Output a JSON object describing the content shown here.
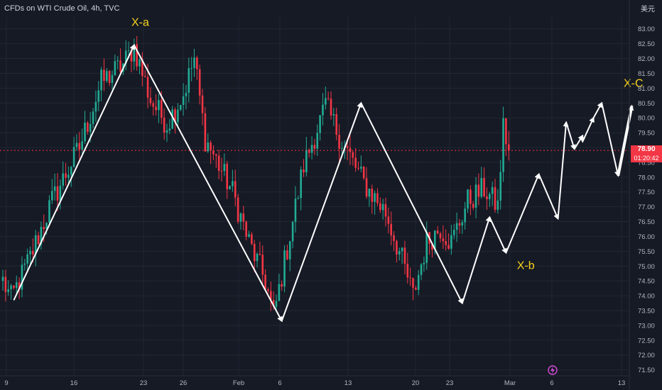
{
  "header": {
    "title": "CFDs on WTI Crude Oil, 4h, TVC",
    "currency": "美元"
  },
  "price_badge": {
    "price": "78.90",
    "countdown": "01:20:42"
  },
  "colors": {
    "background": "#161a25",
    "grid": "#232733",
    "up": "#22ab94",
    "down": "#f23645",
    "axis_text": "#b2b5be",
    "annotation": "#f7d21e",
    "wave": "#ffffff"
  },
  "chart_data": {
    "type": "candlestick",
    "title": "CFDs on WTI Crude Oil, 4h, TVC",
    "x_ticks": [
      "9",
      "16",
      "23",
      "26",
      "Feb",
      "6",
      "13",
      "20",
      "23",
      "Mar",
      "6",
      "13"
    ],
    "y_ticks": [
      "71.50",
      "72.00",
      "72.50",
      "73.00",
      "73.50",
      "74.00",
      "74.50",
      "75.00",
      "75.50",
      "76.00",
      "76.50",
      "77.00",
      "77.50",
      "78.00",
      "78.50",
      "79.00",
      "79.50",
      "80.00",
      "80.50",
      "81.00",
      "81.50",
      "82.00",
      "82.50",
      "83.00"
    ],
    "ylim": [
      71.3,
      83.4
    ],
    "current_price": 78.9,
    "price_anchors": [
      {
        "i": 0,
        "p": 74.5
      },
      {
        "i": 3,
        "p": 73.9
      },
      {
        "i": 10,
        "p": 75.3
      },
      {
        "i": 18,
        "p": 77.2
      },
      {
        "i": 28,
        "p": 79.0
      },
      {
        "i": 36,
        "p": 81.2
      },
      {
        "i": 44,
        "p": 81.8
      },
      {
        "i": 48,
        "p": 82.4
      },
      {
        "i": 54,
        "p": 80.6
      },
      {
        "i": 60,
        "p": 79.8
      },
      {
        "i": 66,
        "p": 80.8
      },
      {
        "i": 70,
        "p": 82.0
      },
      {
        "i": 74,
        "p": 79.3
      },
      {
        "i": 84,
        "p": 77.5
      },
      {
        "i": 90,
        "p": 75.8
      },
      {
        "i": 96,
        "p": 74.5
      },
      {
        "i": 99,
        "p": 73.3
      },
      {
        "i": 104,
        "p": 75.6
      },
      {
        "i": 110,
        "p": 78.4
      },
      {
        "i": 118,
        "p": 80.4
      },
      {
        "i": 124,
        "p": 79.2
      },
      {
        "i": 132,
        "p": 77.8
      },
      {
        "i": 140,
        "p": 76.8
      },
      {
        "i": 146,
        "p": 75.2
      },
      {
        "i": 150,
        "p": 74.0
      },
      {
        "i": 155,
        "p": 75.8
      },
      {
        "i": 160,
        "p": 76.3
      },
      {
        "i": 164,
        "p": 75.8
      },
      {
        "i": 170,
        "p": 77.2
      },
      {
        "i": 176,
        "p": 77.6
      },
      {
        "i": 181,
        "p": 77.0
      },
      {
        "i": 183,
        "p": 79.7
      },
      {
        "i": 185,
        "p": 78.9
      }
    ],
    "wave_path": [
      {
        "i": 4,
        "p": 73.85
      },
      {
        "i": 48,
        "p": 82.45
      },
      {
        "i": 102,
        "p": 73.15
      },
      {
        "i": 131,
        "p": 80.5
      },
      {
        "i": 168,
        "p": 73.75
      },
      {
        "i": 178,
        "p": 76.65
      },
      {
        "i": 184,
        "p": 75.45
      },
      {
        "i": 196,
        "p": 78.1
      },
      {
        "i": 203,
        "p": 76.6
      },
      {
        "i": 206,
        "p": 79.85
      },
      {
        "i": 209,
        "p": 78.95
      }
    ],
    "projection_path": [
      {
        "i": 209,
        "p": 78.95
      },
      {
        "i": 212,
        "p": 79.4
      },
      {
        "i": 212,
        "p": 79.2
      },
      {
        "i": 216,
        "p": 80.0
      },
      {
        "i": 219,
        "p": 80.5
      },
      {
        "i": 225,
        "p": 78.05
      },
      {
        "i": 230,
        "p": 80.4
      }
    ],
    "annotations": [
      {
        "text": "X-a",
        "i": 47,
        "p": 83.1
      },
      {
        "text": "X-b",
        "i": 188,
        "p": 74.9
      },
      {
        "text": "X-C",
        "i": 227,
        "p": 81.05
      }
    ]
  }
}
